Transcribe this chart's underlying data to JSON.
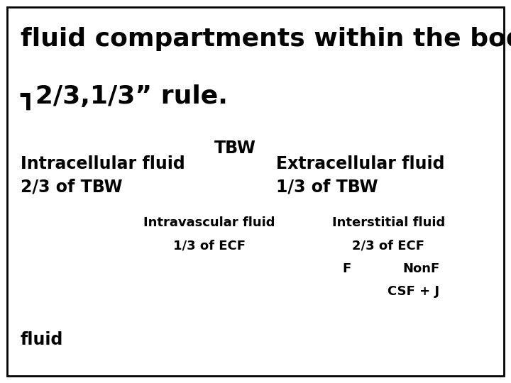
{
  "bg_color": "#ffffff",
  "border_color": "#000000",
  "title_line1": "fluid compartments within the body",
  "title_line2": "┓2/3,1/3” rule.",
  "tbw_label": "TBW",
  "icf_label1": "Intracellular fluid",
  "icf_label2": "2/3 of TBW",
  "ecf_label1": "Extracellular fluid",
  "ecf_label2": "1/3 of TBW",
  "intravascular_label1": "Intravascular fluid",
  "intravascular_label2": "1/3 of ECF",
  "interstitial_label1": "Interstitial fluid",
  "interstitial_label2": "2/3 of ECF",
  "f_label": "F",
  "nonf_label": "NonF",
  "csf_label": "CSF + J",
  "fluid_label": "fluid",
  "title_fontsize": 26,
  "body_fontsize": 17,
  "small_fontsize": 13
}
